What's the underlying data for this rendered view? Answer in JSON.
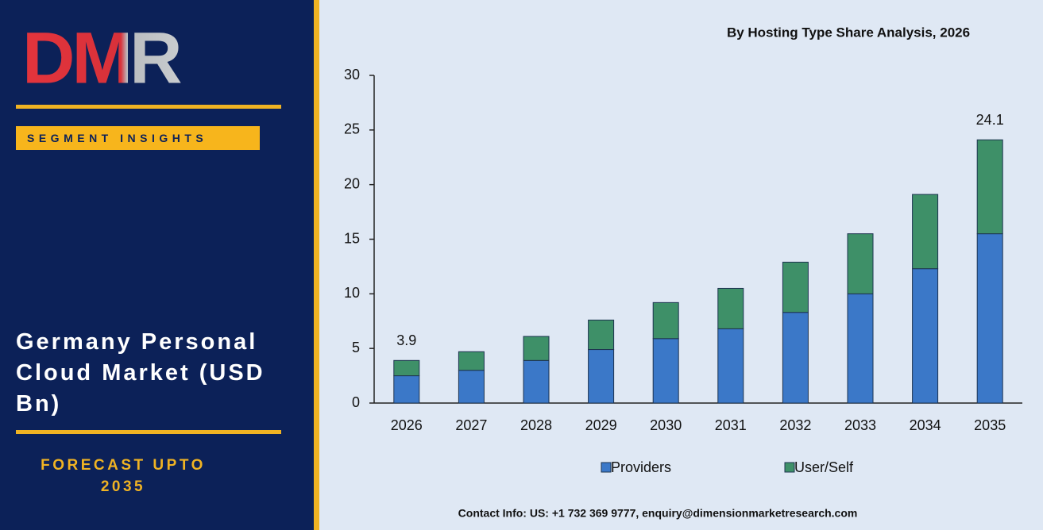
{
  "sidebar": {
    "logo": "DMR",
    "tag": "SEGMENT INSIGHTS",
    "title": "Germany Personal Cloud Market (USD Bn)",
    "forecast": "FORECAST UPTO 2035"
  },
  "chart_data": {
    "type": "stacked_bar",
    "title": "By Hosting Type Share Analysis, 2026",
    "categories": [
      "2026",
      "2027",
      "2028",
      "2029",
      "2030",
      "2031",
      "2032",
      "2033",
      "2034",
      "2035"
    ],
    "series": [
      {
        "name": "Providers",
        "color": "#3b78c8",
        "values": [
          2.5,
          3.0,
          3.9,
          4.9,
          5.9,
          6.8,
          8.3,
          10.0,
          12.3,
          15.5
        ]
      },
      {
        "name": "User/Self",
        "color": "#3e9068",
        "values": [
          1.4,
          1.7,
          2.2,
          2.7,
          3.3,
          3.7,
          4.6,
          5.5,
          6.8,
          8.6
        ]
      }
    ],
    "total_labels": [
      {
        "category": "2026",
        "value": 3.9
      },
      {
        "category": "2035",
        "value": 24.1
      }
    ],
    "ylim": [
      0,
      30
    ],
    "yticks": [
      0,
      5,
      10,
      15,
      20,
      25,
      30
    ],
    "grid": false,
    "legend": "bottom"
  },
  "footer": "Contact Info: US: +1 732 369 9777, enquiry@dimensionmarketresearch.com"
}
